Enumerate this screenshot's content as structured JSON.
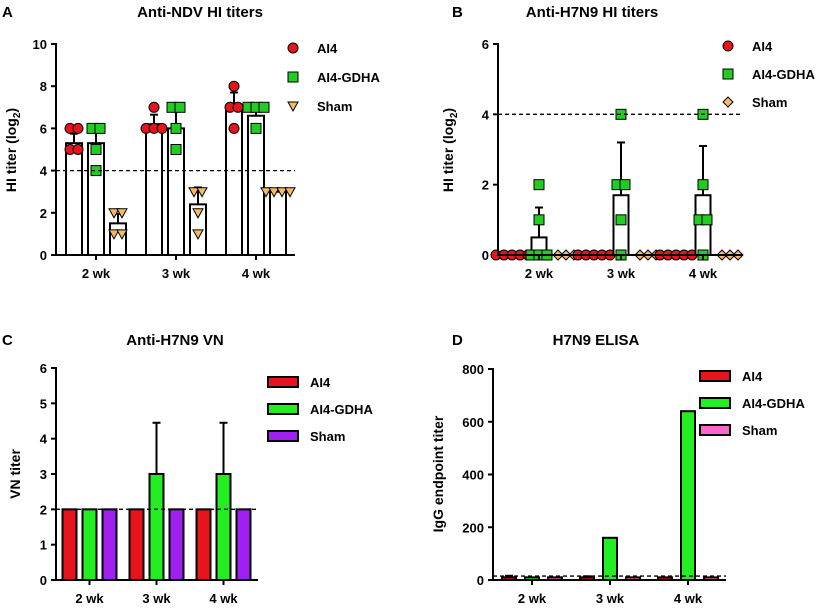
{
  "figure_letters": [
    "A",
    "B",
    "C",
    "D"
  ],
  "chart_data": [
    {
      "id": "A",
      "type": "bar",
      "title": "Anti-NDV HI titers",
      "ylabel_main": "HI  titer (log",
      "ylabel_sub": "2",
      "ylabel_close": ")",
      "ylim": [
        0,
        10
      ],
      "yticks": [
        0,
        2,
        4,
        6,
        8,
        10
      ],
      "threshold": 4,
      "categories": [
        "2 wk",
        "3 wk",
        "4 wk"
      ],
      "series": [
        {
          "name": "AI4",
          "color": "#e8141b",
          "marker": "circle",
          "values": [
            5.3,
            6.2,
            7.0
          ],
          "errors": [
            0.45,
            0.45,
            0.7
          ],
          "points": [
            [
              5,
              5,
              6,
              6
            ],
            [
              6,
              6,
              6,
              7
            ],
            [
              6,
              7,
              7,
              8
            ]
          ]
        },
        {
          "name": "AI4-GDHA",
          "color": "#22cc22",
          "marker": "square",
          "values": [
            5.3,
            6.0,
            6.6
          ],
          "errors": [
            0.8,
            0.8,
            0.45
          ],
          "points": [
            [
              4,
              5,
              6,
              6
            ],
            [
              5,
              6,
              7,
              7
            ],
            [
              6,
              7,
              7,
              7
            ]
          ]
        },
        {
          "name": "Sham",
          "color": "#f7b964",
          "marker": "triangle-down",
          "values": [
            1.5,
            2.4,
            3.0
          ],
          "errors": [
            0.45,
            0.8,
            0
          ],
          "points": [
            [
              1,
              1,
              2,
              2
            ],
            [
              1,
              2,
              3,
              3
            ],
            [
              3,
              3,
              3,
              3
            ]
          ]
        }
      ]
    },
    {
      "id": "B",
      "type": "bar",
      "title": "Anti-H7N9 HI titers",
      "ylabel_main": "HI  titer (log",
      "ylabel_sub": "2",
      "ylabel_close": ")",
      "ylim": [
        0,
        6
      ],
      "yticks": [
        0,
        2,
        4,
        6
      ],
      "threshold": 4,
      "categories": [
        "2 wk",
        "3 wk",
        "4 wk"
      ],
      "series": [
        {
          "name": "AI4",
          "color": "#e8141b",
          "marker": "circle",
          "values": [
            0,
            0,
            0
          ],
          "errors": [
            0,
            0,
            0
          ],
          "points": [
            [
              0,
              0,
              0,
              0,
              0
            ],
            [
              0,
              0,
              0,
              0,
              0
            ],
            [
              0,
              0,
              0,
              0,
              0
            ]
          ]
        },
        {
          "name": "AI4-GDHA",
          "color": "#22cc22",
          "marker": "square",
          "values": [
            0.5,
            1.7,
            1.7
          ],
          "errors": [
            0.85,
            1.5,
            1.4
          ],
          "points": [
            [
              0,
              0,
              0,
              1,
              2
            ],
            [
              0,
              1,
              2,
              2,
              4
            ],
            [
              0,
              1,
              1,
              2,
              4
            ]
          ]
        },
        {
          "name": "Sham",
          "color": "#f7b964",
          "marker": "diamond",
          "values": [
            0,
            0,
            0
          ],
          "errors": [
            0,
            0,
            0
          ],
          "points": [
            [
              0,
              0,
              0
            ],
            [
              0,
              0,
              0
            ],
            [
              0,
              0,
              0
            ]
          ]
        }
      ]
    },
    {
      "id": "C",
      "type": "bar",
      "title": "Anti-H7N9 VN",
      "ylabel_main": "VN titer",
      "ylim": [
        0,
        6
      ],
      "yticks": [
        0,
        1,
        2,
        3,
        4,
        5,
        6
      ],
      "threshold": 2,
      "categories": [
        "2 wk",
        "3 wk",
        "4 wk"
      ],
      "series": [
        {
          "name": "AI4",
          "color": "#e8141b",
          "values": [
            2,
            2,
            2
          ],
          "errors": [
            0,
            0,
            0
          ]
        },
        {
          "name": "AI4-GDHA",
          "color": "#22ee22",
          "values": [
            2,
            3,
            3
          ],
          "errors": [
            0,
            1.45,
            1.45
          ]
        },
        {
          "name": "Sham",
          "color": "#a020f0",
          "values": [
            2,
            2,
            2
          ],
          "errors": [
            0,
            0,
            0
          ]
        }
      ]
    },
    {
      "id": "D",
      "type": "bar",
      "title": "H7N9 ELISA",
      "ylabel_main": "IgG endpoint titer",
      "ylim": [
        0,
        800
      ],
      "yticks": [
        0,
        200,
        400,
        600,
        800
      ],
      "threshold": 15,
      "categories": [
        "2 wk",
        "3 wk",
        "4 wk"
      ],
      "series": [
        {
          "name": "AI4",
          "color": "#e8141b",
          "values": [
            10,
            10,
            10
          ],
          "errors": [
            6,
            4,
            0
          ]
        },
        {
          "name": "AI4-GDHA",
          "color": "#22ee22",
          "values": [
            10,
            160,
            640
          ],
          "errors": [
            0,
            0,
            0
          ]
        },
        {
          "name": "Sham",
          "color": "#ff66cc",
          "values": [
            10,
            10,
            10
          ],
          "errors": [
            0,
            0,
            0
          ]
        }
      ]
    }
  ]
}
